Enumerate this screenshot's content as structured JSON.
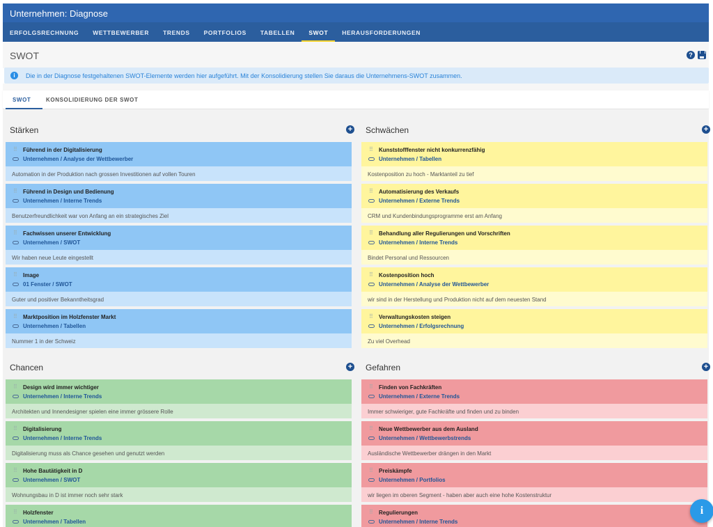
{
  "window": {
    "title": "Unternehmen: Diagnose"
  },
  "nav": {
    "items": [
      {
        "label": "ERFOLGSRECHNUNG"
      },
      {
        "label": "WETTBEWERBER"
      },
      {
        "label": "TRENDS"
      },
      {
        "label": "PORTFOLIOS"
      },
      {
        "label": "TABELLEN"
      },
      {
        "label": "SWOT",
        "active": true
      },
      {
        "label": "HERAUSFORDERUNGEN"
      }
    ]
  },
  "page": {
    "title": "SWOT",
    "help_icon": "help-circle-icon",
    "print_icon": "printer-icon"
  },
  "info": {
    "text": "Die in der Diagnose festgehaltenen SWOT-Elemente werden hier aufgeführt. Mit der Konsolidierung stellen Sie daraus die Unternehmens-SWOT zusammen."
  },
  "tabs": [
    {
      "label": "SWOT",
      "active": true
    },
    {
      "label": "KONSOLIDIERUNG DER SWOT"
    }
  ],
  "colors": {
    "strengths": "#8fc6f5",
    "weaknesses": "#fff59d",
    "opportunities": "#a6d8a8",
    "threats": "#f09a9e"
  },
  "quadrants": {
    "strengths": {
      "title": "Stärken",
      "items": [
        {
          "title": "Führend in der Digitalisierung",
          "link": "Unternehmen / Analyse der Wettbewerber",
          "note": "Automation in der Produktion nach grossen Investitionen auf vollen Touren"
        },
        {
          "title": "Führend in Design und Bedienung",
          "link": "Unternehmen / Interne Trends",
          "note": "Benutzerfreundlichkeit war von Anfang an ein strategisches Ziel"
        },
        {
          "title": "Fachwissen unserer Entwicklung",
          "link": "Unternehmen / SWOT",
          "note": "Wir haben neue Leute eingestellt"
        },
        {
          "title": "Image",
          "link": "01 Fenster / SWOT",
          "note": "Guter und positiver Bekanntheitsgrad"
        },
        {
          "title": "Marktposition im Holzfenster Markt",
          "link": "Unternehmen / Tabellen",
          "note": "Nummer 1 in der Schweiz"
        }
      ]
    },
    "weaknesses": {
      "title": "Schwächen",
      "items": [
        {
          "title": "Kunststofffenster nicht konkurrenzfähig",
          "link": "Unternehmen / Tabellen",
          "note": "Kostenposition zu hoch - Marktanteil zu tief"
        },
        {
          "title": "Automatisierung des Verkaufs",
          "link": "Unternehmen / Externe Trends",
          "note": "CRM und Kundenbindungsprogramme erst am Anfang"
        },
        {
          "title": "Behandlung aller Regulierungen und Vorschriften",
          "link": "Unternehmen / Interne Trends",
          "note": "Bindet Personal und Ressourcen"
        },
        {
          "title": "Kostenposition hoch",
          "link": "Unternehmen / Analyse der Wettbewerber",
          "note": "wir sind in der Herstellung und Produktion nicht auf dem neuesten Stand"
        },
        {
          "title": "Verwaltungskosten steigen",
          "link": "Unternehmen / Erfolgsrechnung",
          "note": "Zu viel Overhead"
        }
      ]
    },
    "opportunities": {
      "title": "Chancen",
      "items": [
        {
          "title": "Design wird immer wichtiger",
          "link": "Unternehmen / Interne Trends",
          "note": "Architekten und Innendesigner spielen eine immer grössere Rolle"
        },
        {
          "title": "Digitalisierung",
          "link": "Unternehmen / Interne Trends",
          "note": "Digitalisierung muss als Chance gesehen und genutzt werden"
        },
        {
          "title": "Hohe Bautätigkeit in D",
          "link": "Unternehmen / SWOT",
          "note": "Wohnungsbau in D ist immer noch sehr stark"
        },
        {
          "title": "Holzfenster",
          "link": "Unternehmen / Tabellen",
          "note": ""
        }
      ]
    },
    "threats": {
      "title": "Gefahren",
      "items": [
        {
          "title": "Finden von Fachkräften",
          "link": "Unternehmen / Externe Trends",
          "note": "Immer schwieriger, gute Fachkräfte und finden und zu binden"
        },
        {
          "title": "Neue Wettbewerber aus dem Ausland",
          "link": "Unternehmen / Wettbewerbstrends",
          "note": "Ausländische Wettbewerber drängen in den Markt"
        },
        {
          "title": "Preiskämpfe",
          "link": "Unternehmen / Portfolios",
          "note": "wir liegen im oberen Segment - haben aber auch eine hohe Kostenstruktur"
        },
        {
          "title": "Regulierungen",
          "link": "Unternehmen / Interne Trends",
          "note": ""
        }
      ]
    }
  },
  "fab": {
    "label": "i"
  }
}
